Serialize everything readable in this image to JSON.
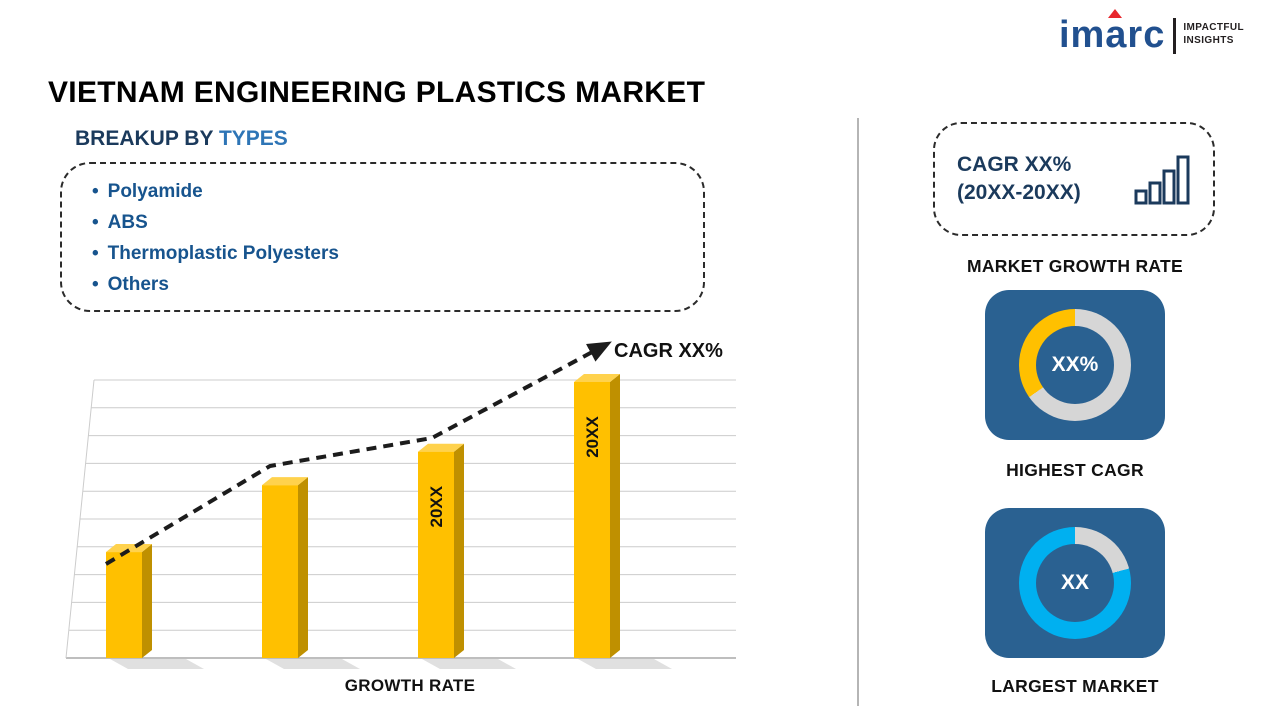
{
  "header": {
    "title": "VIETNAM ENGINEERING PLASTICS MARKET"
  },
  "logo": {
    "wordmark": "imarc",
    "tagline_line1": "IMPACTFUL",
    "tagline_line2": "INSIGHTS"
  },
  "breakup": {
    "heading_prefix": "BREAKUP BY ",
    "heading_highlight": "TYPES",
    "items": [
      "Polyamide",
      "ABS",
      "Thermoplastic Polyesters",
      "Others"
    ]
  },
  "chart": {
    "annotation": "CAGR XX%",
    "axis_label": "GROWTH RATE"
  },
  "chart_data": {
    "type": "bar",
    "title": "GROWTH RATE",
    "categories": [
      "",
      "",
      "20XX",
      "20XX"
    ],
    "values": [
      38,
      62,
      74,
      99
    ],
    "xlabel": "GROWTH RATE",
    "ylabel": "",
    "gridlines": true,
    "bar_color": "#ffc000",
    "trend_annotation": "CAGR XX%",
    "legend": "none"
  },
  "right_panel": {
    "growth_box": {
      "line1": "CAGR XX%",
      "line2": "(20XX-20XX)"
    },
    "growth_caption": "MARKET GROWTH RATE",
    "highest_cagr": {
      "value": "XX%",
      "caption": "HIGHEST CAGR"
    },
    "largest_market": {
      "value": "XX",
      "caption": "LARGEST MARKET"
    }
  },
  "colors": {
    "accent_blue": "#2e75b6",
    "navy": "#1b3a5c",
    "bar_yellow": "#ffc000",
    "bar_side_yellow": "#bf9000",
    "tile_blue": "#2a6191",
    "donut_gray": "#d6d6d6",
    "donut_yellow": "#ffc000",
    "donut_cyan": "#00b0f0",
    "logo_blue": "#21508f",
    "logo_red": "#e8262d"
  }
}
